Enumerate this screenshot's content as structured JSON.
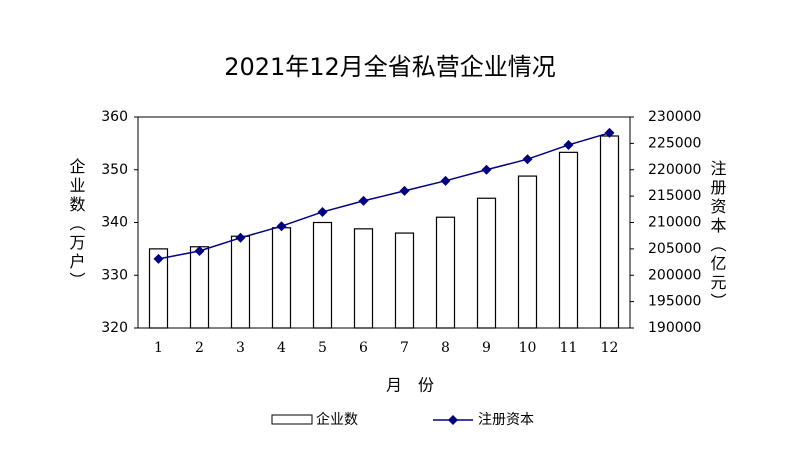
{
  "chart_data": {
    "type": "bar_line",
    "title": "2021年12月全省私营企业情况",
    "x_label": "月　份",
    "y_label": "企业数（万户）",
    "y2_label": "注册资本（亿元）",
    "categories": [
      "1",
      "2",
      "3",
      "4",
      "5",
      "6",
      "7",
      "8",
      "9",
      "10",
      "11",
      "12"
    ],
    "series": [
      {
        "name": "企业数",
        "type": "bar",
        "color": "#ffffff",
        "values": [
          335,
          335.4,
          337.4,
          339,
          340,
          338.8,
          338,
          341,
          344.6,
          348.8,
          353.3,
          356.4
        ]
      },
      {
        "name": "注册资本",
        "type": "line",
        "axis": "y2",
        "color": "#000080",
        "values": [
          203100,
          204600,
          207100,
          209300,
          212000,
          214100,
          216000,
          217900,
          220000,
          222000,
          224700,
          227000
        ]
      }
    ],
    "ylim": [
      320,
      360
    ],
    "yticks": [
      320,
      330,
      340,
      350,
      360
    ],
    "y2lim": [
      190000,
      230000
    ],
    "y2ticks": [
      190000,
      195000,
      200000,
      205000,
      210000,
      215000,
      220000,
      225000,
      230000
    ],
    "legend": "bottom"
  }
}
